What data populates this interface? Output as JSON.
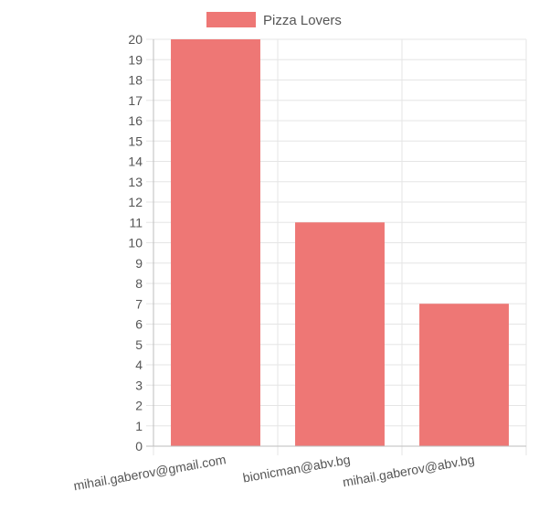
{
  "chart_data": {
    "type": "bar",
    "categories": [
      "mihail.gaberov@gmail.com",
      "bionicman@abv.bg",
      "mihail.gaberov@abv.bg"
    ],
    "series": [
      {
        "name": "Pizza Lovers",
        "values": [
          20,
          11,
          7
        ]
      }
    ],
    "ylim": [
      0,
      20
    ],
    "y_tick_step": 1,
    "grid": true,
    "legend_position": "top",
    "x_tick_rotation": "angled",
    "colors": {
      "bar_fill": "#ee7775",
      "grid": "#e5e5e5",
      "axis": "#bdbdbd",
      "text": "#555555"
    }
  }
}
